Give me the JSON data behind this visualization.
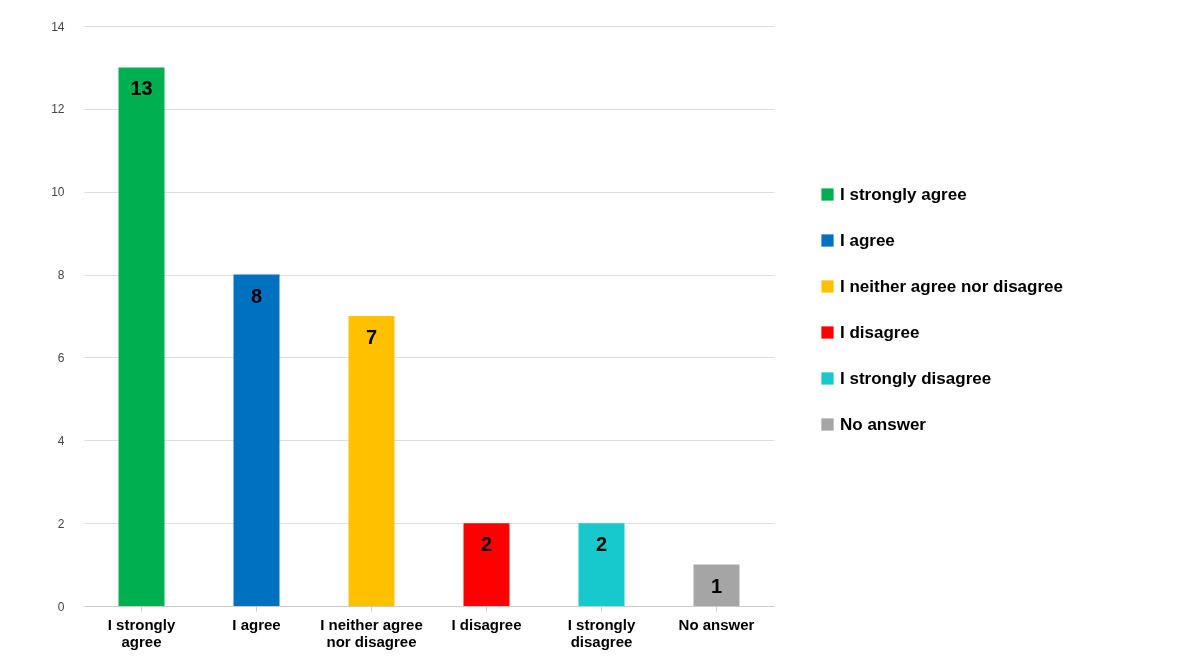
{
  "chart_data": {
    "type": "bar",
    "categories": [
      "I strongly agree",
      "I agree",
      "I neither agree nor disagree",
      "I disagree",
      "I strongly disagree",
      "No answer"
    ],
    "series": [
      {
        "name": "I strongly agree",
        "color": "#00b050",
        "values": [
          13,
          null,
          null,
          null,
          null,
          null
        ]
      },
      {
        "name": "I agree",
        "color": "#0070c0",
        "values": [
          null,
          8,
          null,
          null,
          null,
          null
        ]
      },
      {
        "name": "I neither agree nor disagree",
        "color": "#ffc000",
        "values": [
          null,
          null,
          7,
          null,
          null,
          null
        ]
      },
      {
        "name": "I disagree",
        "color": "#ff0000",
        "values": [
          null,
          null,
          null,
          2,
          null,
          null
        ]
      },
      {
        "name": "I strongly disagree",
        "color": "#17c8cc",
        "values": [
          null,
          null,
          null,
          null,
          2,
          null
        ]
      },
      {
        "name": "No answer",
        "color": "#a5a5a5",
        "values": [
          null,
          null,
          null,
          null,
          null,
          1
        ]
      }
    ],
    "ylim": [
      0,
      14
    ],
    "yticks": [
      0,
      2,
      4,
      6,
      8,
      10,
      12,
      14
    ],
    "grid": "y",
    "legend": "right",
    "data_labels": true
  }
}
